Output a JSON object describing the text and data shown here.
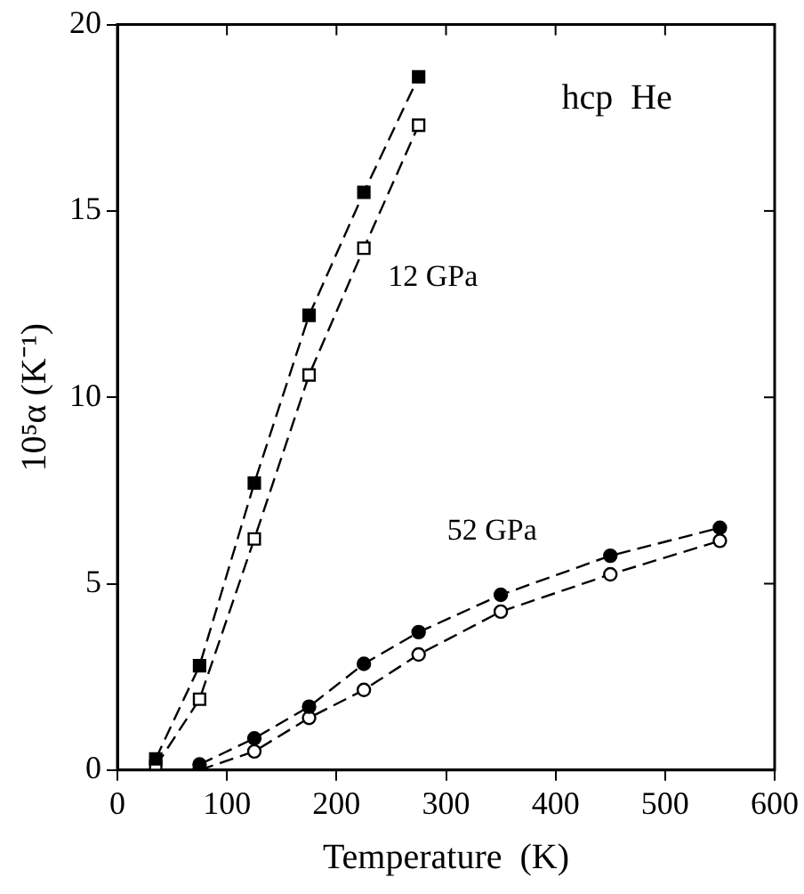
{
  "chart_data": {
    "type": "line",
    "title": "hcp  He",
    "xlabel": "Temperature  (K)",
    "ylabel": "10⁵α (K⁻¹)",
    "xlim": [
      0,
      600
    ],
    "xticks": [
      0,
      100,
      200,
      300,
      400,
      500,
      600
    ],
    "ylim": [
      0,
      20
    ],
    "yticks": [
      0,
      5,
      10,
      15,
      20
    ],
    "grid": false,
    "legend": false,
    "line_style": "dashed",
    "series": [
      {
        "color": "#000000",
        "marker": "square",
        "x": [
          35,
          75,
          125,
          175,
          225,
          275
        ],
        "values": [
          0.3,
          2.8,
          7.7,
          12.2,
          15.5,
          18.6
        ]
      },
      {
        "color": "#000000",
        "marker": "square",
        "x": [
          35,
          75,
          125,
          175,
          225,
          275
        ],
        "values": [
          0.1,
          1.9,
          6.2,
          10.6,
          14.0,
          17.3
        ]
      },
      {
        "color": "#000000",
        "marker": "circle",
        "x": [
          75,
          125,
          175,
          225,
          275,
          350,
          450,
          550
        ],
        "values": [
          0.15,
          0.85,
          1.7,
          2.85,
          3.7,
          4.7,
          5.75,
          6.5
        ]
      },
      {
        "color": "#000000",
        "marker": "circle",
        "x": [
          75,
          125,
          175,
          225,
          275,
          350,
          450,
          550
        ],
        "values": [
          0.0,
          0.5,
          1.4,
          2.15,
          3.1,
          4.25,
          5.25,
          6.15
        ]
      }
    ],
    "annotations": [
      "12 GPa",
      "52 GPa"
    ]
  }
}
